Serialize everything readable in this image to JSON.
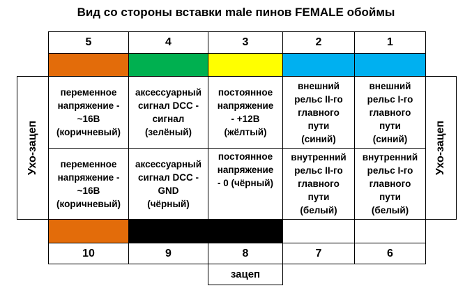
{
  "title": "Вид со стороны вставки male пинов FEMALE обоймы",
  "colors": {
    "orange": "#E36C0A",
    "green": "#00B050",
    "yellow": "#FFFF00",
    "blue": "#00B0F0",
    "black": "#000000",
    "white": "#FFFFFF"
  },
  "top_row": {
    "pins": [
      "5",
      "4",
      "3",
      "2",
      "1"
    ],
    "color_names": [
      "orange",
      "green",
      "yellow",
      "blue",
      "blue"
    ],
    "descriptions": [
      "переменное\nнапряжение -\n~16В\n(коричневый)",
      "аксессуарный\nсигнал DCC -\nсигнал\n(зелёный)",
      "постоянное\nнапряжение\n- +12В\n(жёлтый)",
      "внешний\nрельс II-го\nглавного\nпути\n(синий)",
      "внешний\nрельс I-го\nглавного\nпути\n(синий)"
    ]
  },
  "bottom_row": {
    "pins": [
      "10",
      "9",
      "8",
      "7",
      "6"
    ],
    "color_names": [
      "orange",
      "black",
      "black",
      "white",
      "white"
    ],
    "descriptions": [
      "переменное\nнапряжение -\n~16В\n(коричневый)",
      "аксессуарный\nсигнал DCC -\nGND\n(чёрный)",
      "постоянное\nнапряжение\n- 0 (чёрный)",
      "внутренний\nрельс II-го\nглавного\nпути\n(белый)",
      "внутренний\nрельс I-го\nглавного\nпути\n(белый)"
    ]
  },
  "side_label_left": "Ухо-зацеп",
  "side_label_right": "Ухо-зацеп",
  "bottom_latch": "зацеп"
}
